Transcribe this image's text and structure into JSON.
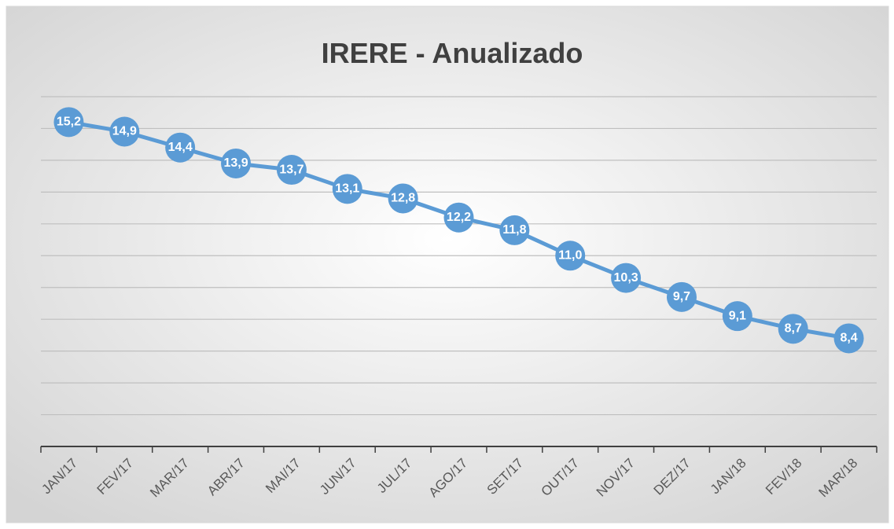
{
  "chart_data": {
    "type": "line",
    "title": "IRERE - Anualizado",
    "categories": [
      "JAN/17",
      "FEV/17",
      "MAR/17",
      "ABR/17",
      "MAI/17",
      "JUN/17",
      "JUL/17",
      "AGO/17",
      "SET/17",
      "OUT/17",
      "NOV/17",
      "DEZ/17",
      "JAN/18",
      "FEV/18",
      "MAR/18"
    ],
    "series": [
      {
        "name": "IRERE",
        "color": "#5b9bd5",
        "values": [
          15.2,
          14.9,
          14.4,
          13.9,
          13.7,
          13.1,
          12.8,
          12.2,
          11.8,
          11.0,
          10.3,
          9.7,
          9.1,
          8.7,
          8.4
        ],
        "value_labels": [
          "15,2",
          "14,9",
          "14,4",
          "13,9",
          "13,7",
          "13,1",
          "12,8",
          "12,2",
          "11,8",
          "11,0",
          "10,3",
          "9,7",
          "9,1",
          "8,7",
          "8,4"
        ]
      }
    ],
    "ylim": [
      5,
      16
    ],
    "yticks": [
      5,
      6,
      7,
      8,
      9,
      10,
      11,
      12,
      13,
      14,
      15,
      16
    ],
    "grid": true
  }
}
